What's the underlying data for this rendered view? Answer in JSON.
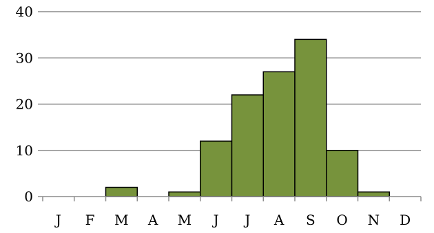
{
  "chart_data": {
    "type": "bar",
    "categories": [
      "J",
      "F",
      "M",
      "A",
      "M",
      "J",
      "J",
      "A",
      "S",
      "O",
      "N",
      "D"
    ],
    "values": [
      0,
      0,
      2,
      0,
      1,
      12,
      22,
      27,
      34,
      10,
      1,
      0
    ],
    "title": "",
    "xlabel": "",
    "ylabel": "",
    "ylim": [
      0,
      40
    ],
    "yticks": [
      "0",
      "10",
      "20",
      "30",
      "40"
    ],
    "grid": true,
    "legend": "none",
    "bar_color": "#77933c"
  }
}
